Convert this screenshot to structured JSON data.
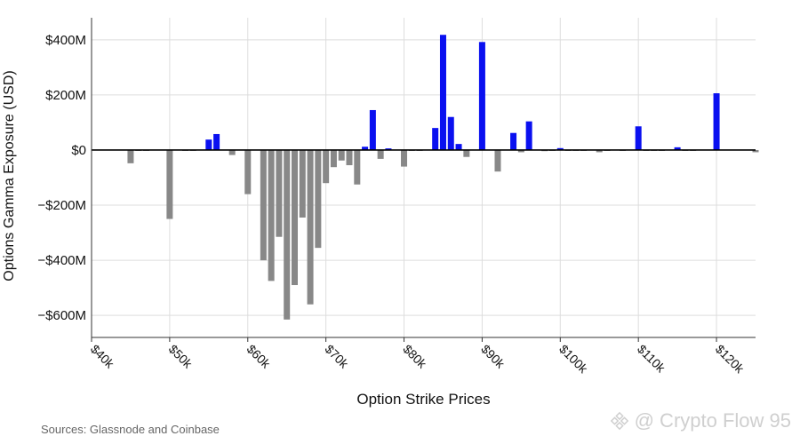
{
  "chart_data": {
    "type": "bar",
    "title": "",
    "xlabel": "Option Strike Prices",
    "ylabel": "Options Gamma Exposure (USD)",
    "xlim": [
      40000,
      125000
    ],
    "ylim": [
      -680,
      480
    ],
    "y_unit": "USD millions",
    "grid": true,
    "x_ticks": [
      {
        "value": 40000,
        "label": "$40k"
      },
      {
        "value": 50000,
        "label": "$50k"
      },
      {
        "value": 60000,
        "label": "$60k"
      },
      {
        "value": 70000,
        "label": "$70k"
      },
      {
        "value": 80000,
        "label": "$80k"
      },
      {
        "value": 90000,
        "label": "$90k"
      },
      {
        "value": 100000,
        "label": "$100k"
      },
      {
        "value": 110000,
        "label": "$110k"
      },
      {
        "value": 120000,
        "label": "$120k"
      }
    ],
    "y_ticks": [
      {
        "value": 400,
        "label": "$400M"
      },
      {
        "value": 200,
        "label": "$200M"
      },
      {
        "value": 0,
        "label": "$0"
      },
      {
        "value": -200,
        "label": "−$200M"
      },
      {
        "value": -400,
        "label": "−$400M"
      },
      {
        "value": -600,
        "label": "−$600M"
      }
    ],
    "colors": {
      "positive": "#0a10f0",
      "negative": "#888888",
      "grid": "#dddddd",
      "zero_line": "#000000"
    },
    "bars": [
      {
        "strike": 45000,
        "value": -48
      },
      {
        "strike": 46000,
        "value": -2
      },
      {
        "strike": 47000,
        "value": -2
      },
      {
        "strike": 50000,
        "value": -250
      },
      {
        "strike": 52000,
        "value": -3
      },
      {
        "strike": 53000,
        "value": -3
      },
      {
        "strike": 55000,
        "value": 38
      },
      {
        "strike": 56000,
        "value": 58
      },
      {
        "strike": 58000,
        "value": -18
      },
      {
        "strike": 60000,
        "value": -160
      },
      {
        "strike": 62000,
        "value": -400
      },
      {
        "strike": 63000,
        "value": -475
      },
      {
        "strike": 64000,
        "value": -315
      },
      {
        "strike": 65000,
        "value": -615
      },
      {
        "strike": 66000,
        "value": -490
      },
      {
        "strike": 67000,
        "value": -245
      },
      {
        "strike": 68000,
        "value": -560
      },
      {
        "strike": 69000,
        "value": -355
      },
      {
        "strike": 70000,
        "value": -120
      },
      {
        "strike": 71000,
        "value": -62
      },
      {
        "strike": 72000,
        "value": -38
      },
      {
        "strike": 73000,
        "value": -55
      },
      {
        "strike": 74000,
        "value": -125
      },
      {
        "strike": 75000,
        "value": 12
      },
      {
        "strike": 76000,
        "value": 145
      },
      {
        "strike": 77000,
        "value": -32
      },
      {
        "strike": 78000,
        "value": 6
      },
      {
        "strike": 80000,
        "value": -60
      },
      {
        "strike": 81000,
        "value": -3
      },
      {
        "strike": 82000,
        "value": -3
      },
      {
        "strike": 84000,
        "value": 80
      },
      {
        "strike": 85000,
        "value": 418
      },
      {
        "strike": 86000,
        "value": 120
      },
      {
        "strike": 87000,
        "value": 22
      },
      {
        "strike": 88000,
        "value": -25
      },
      {
        "strike": 90000,
        "value": 392
      },
      {
        "strike": 92000,
        "value": -78
      },
      {
        "strike": 94000,
        "value": 62
      },
      {
        "strike": 95000,
        "value": -8
      },
      {
        "strike": 96000,
        "value": 104
      },
      {
        "strike": 98000,
        "value": -4
      },
      {
        "strike": 99000,
        "value": -2
      },
      {
        "strike": 100000,
        "value": 7
      },
      {
        "strike": 101000,
        "value": -2
      },
      {
        "strike": 102000,
        "value": -2
      },
      {
        "strike": 103000,
        "value": -2
      },
      {
        "strike": 105000,
        "value": -8
      },
      {
        "strike": 106000,
        "value": -2
      },
      {
        "strike": 108000,
        "value": -2
      },
      {
        "strike": 110000,
        "value": 86
      },
      {
        "strike": 111000,
        "value": -2
      },
      {
        "strike": 112000,
        "value": -2
      },
      {
        "strike": 113000,
        "value": -2
      },
      {
        "strike": 115000,
        "value": 10
      },
      {
        "strike": 116000,
        "value": -2
      },
      {
        "strike": 117000,
        "value": -2
      },
      {
        "strike": 120000,
        "value": 206
      },
      {
        "strike": 125000,
        "value": -8
      }
    ]
  },
  "footer": {
    "source": "Sources: Glassnode and Coinbase",
    "watermark": "@ Crypto Flow 95"
  }
}
